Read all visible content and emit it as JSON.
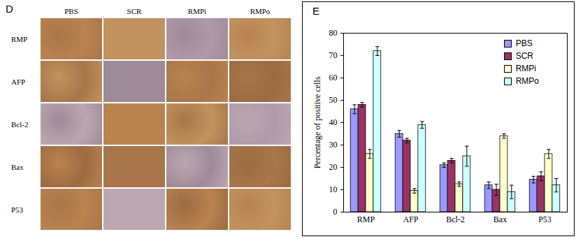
{
  "chart_data": {
    "type": "bar",
    "title": "E",
    "ylabel": "Percentage of positive cells",
    "categories": [
      "RMP",
      "AFP",
      "Bcl-2",
      "Bax",
      "P53"
    ],
    "series": [
      {
        "name": "PBS",
        "color": "#9999ff",
        "values": [
          46,
          35,
          21,
          12,
          14.5
        ],
        "errors": [
          2,
          1.5,
          1,
          1.5,
          1.5
        ]
      },
      {
        "name": "SCR",
        "color": "#993366",
        "values": [
          48,
          32,
          23,
          10,
          16
        ],
        "errors": [
          1,
          1,
          1,
          2.5,
          2
        ]
      },
      {
        "name": "RMPi",
        "color": "#ffffcc",
        "values": [
          26,
          9.5,
          12.5,
          34,
          26
        ],
        "errors": [
          2,
          1,
          1,
          1,
          2
        ]
      },
      {
        "name": "RMPo",
        "color": "#ccffff",
        "values": [
          72,
          39,
          25,
          9,
          12
        ],
        "errors": [
          2,
          1.5,
          4.5,
          3,
          3
        ]
      }
    ],
    "ylim": [
      0,
      80
    ],
    "yticks": [
      0,
      10,
      20,
      30,
      40,
      50,
      60,
      70,
      80
    ],
    "legend": "top-right",
    "grid": false
  },
  "panel_d": {
    "title": "D",
    "columns": [
      "PBS",
      "SCR",
      "RMPi",
      "RMPo"
    ],
    "rows": [
      "RMP",
      "AFP",
      "Bcl-2",
      "Bax",
      "P53"
    ]
  }
}
